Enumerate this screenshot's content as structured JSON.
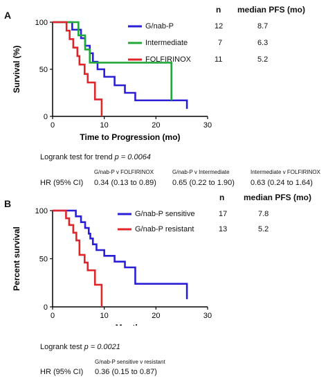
{
  "panels": [
    {
      "letter": "A",
      "legend_headers": {
        "n": "n",
        "median": "median PFS (mo)"
      },
      "legend": [
        {
          "name": "G/nab-P",
          "n": "12",
          "median": "8.7"
        },
        {
          "name": "Intermediate",
          "n": "7",
          "median": "6.3"
        },
        {
          "name": "FOLFIRINOX",
          "n": "11",
          "median": "5.2"
        }
      ],
      "logrank_text": "Logrank test for trend ",
      "logrank_p": "p = 0.0064",
      "hr_label": "HR (95% CI)",
      "hr_comparisons": [
        {
          "label": "G/nab-P v FOLFIRINOX",
          "value": "0.34 (0.13 to 0.89)"
        },
        {
          "label": "G/nab-P v Intermediate",
          "value": "0.65 (0.22 to 1.90)"
        },
        {
          "label": "Intermediate v FOLFIRINOX",
          "value": "0.63 (0.24 to 1.64)"
        }
      ]
    },
    {
      "letter": "B",
      "legend_headers": {
        "n": "n",
        "median": "median PFS (mo)"
      },
      "legend": [
        {
          "name": "G/nab-P sensitive",
          "n": "17",
          "median": "7.8"
        },
        {
          "name": "G/nab-P resistant",
          "n": "13",
          "median": "5.2"
        }
      ],
      "logrank_text": "Logrank test ",
      "logrank_p": "p = 0.0021",
      "hr_label": "HR (95% CI)",
      "hr_comparisons": [
        {
          "label": "G/nab-P sensitive v resistant",
          "value": "0.36 (0.15 to 0.87)"
        }
      ]
    }
  ],
  "chart_data": [
    {
      "type": "line",
      "xlabel": "Time to Progression (mo)",
      "ylabel": "Survival (%)",
      "xlim": [
        0,
        30
      ],
      "ylim": [
        0,
        100
      ],
      "xticks": [
        "0",
        "10",
        "20",
        "30"
      ],
      "yticks": [
        "0",
        "50",
        "100"
      ],
      "grid": false,
      "legend_position": "top-right",
      "colors": [
        "#2a1fd6",
        "#20a83a",
        "#e0262b"
      ],
      "series": [
        {
          "name": "G/nab-P",
          "x": [
            0,
            3,
            3.8,
            5.5,
            6.3,
            7.2,
            7.8,
            8.7,
            10,
            12,
            14,
            16,
            26
          ],
          "y": [
            100,
            100,
            92,
            83,
            75,
            67,
            58,
            50,
            42,
            33,
            25,
            17,
            8
          ]
        },
        {
          "name": "Intermediate",
          "x": [
            0,
            4,
            5,
            6.3,
            7.2,
            23
          ],
          "y": [
            100,
            100,
            86,
            71,
            57,
            17
          ]
        },
        {
          "name": "FOLFIRINOX",
          "x": [
            0,
            2,
            2.7,
            3.3,
            4,
            4.8,
            5.2,
            6.2,
            6.8,
            8.2,
            9.5
          ],
          "y": [
            100,
            100,
            91,
            82,
            73,
            64,
            55,
            45,
            36,
            18,
            0
          ]
        }
      ]
    },
    {
      "type": "line",
      "xlabel": "Months",
      "ylabel": "Percent survival",
      "xlim": [
        0,
        30
      ],
      "ylim": [
        0,
        100
      ],
      "xticks": [
        "0",
        "10",
        "20",
        "30"
      ],
      "yticks": [
        "0",
        "50",
        "100"
      ],
      "grid": false,
      "legend_position": "top-right",
      "colors": [
        "#2a1fd6",
        "#e0262b"
      ],
      "series": [
        {
          "name": "G/nab-P sensitive",
          "x": [
            0,
            4,
            4.5,
            5.5,
            6.3,
            7,
            7.3,
            7.8,
            8.5,
            10,
            12,
            14,
            16,
            26
          ],
          "y": [
            100,
            100,
            94,
            88,
            82,
            76,
            71,
            65,
            59,
            53,
            47,
            41,
            24,
            8
          ]
        },
        {
          "name": "G/nab-P resistant",
          "x": [
            0,
            2,
            2.6,
            3.2,
            4,
            4.6,
            5.2,
            6.2,
            6.8,
            8.2,
            9.5
          ],
          "y": [
            100,
            100,
            92,
            85,
            77,
            69,
            54,
            46,
            38,
            23,
            0
          ]
        }
      ]
    }
  ]
}
